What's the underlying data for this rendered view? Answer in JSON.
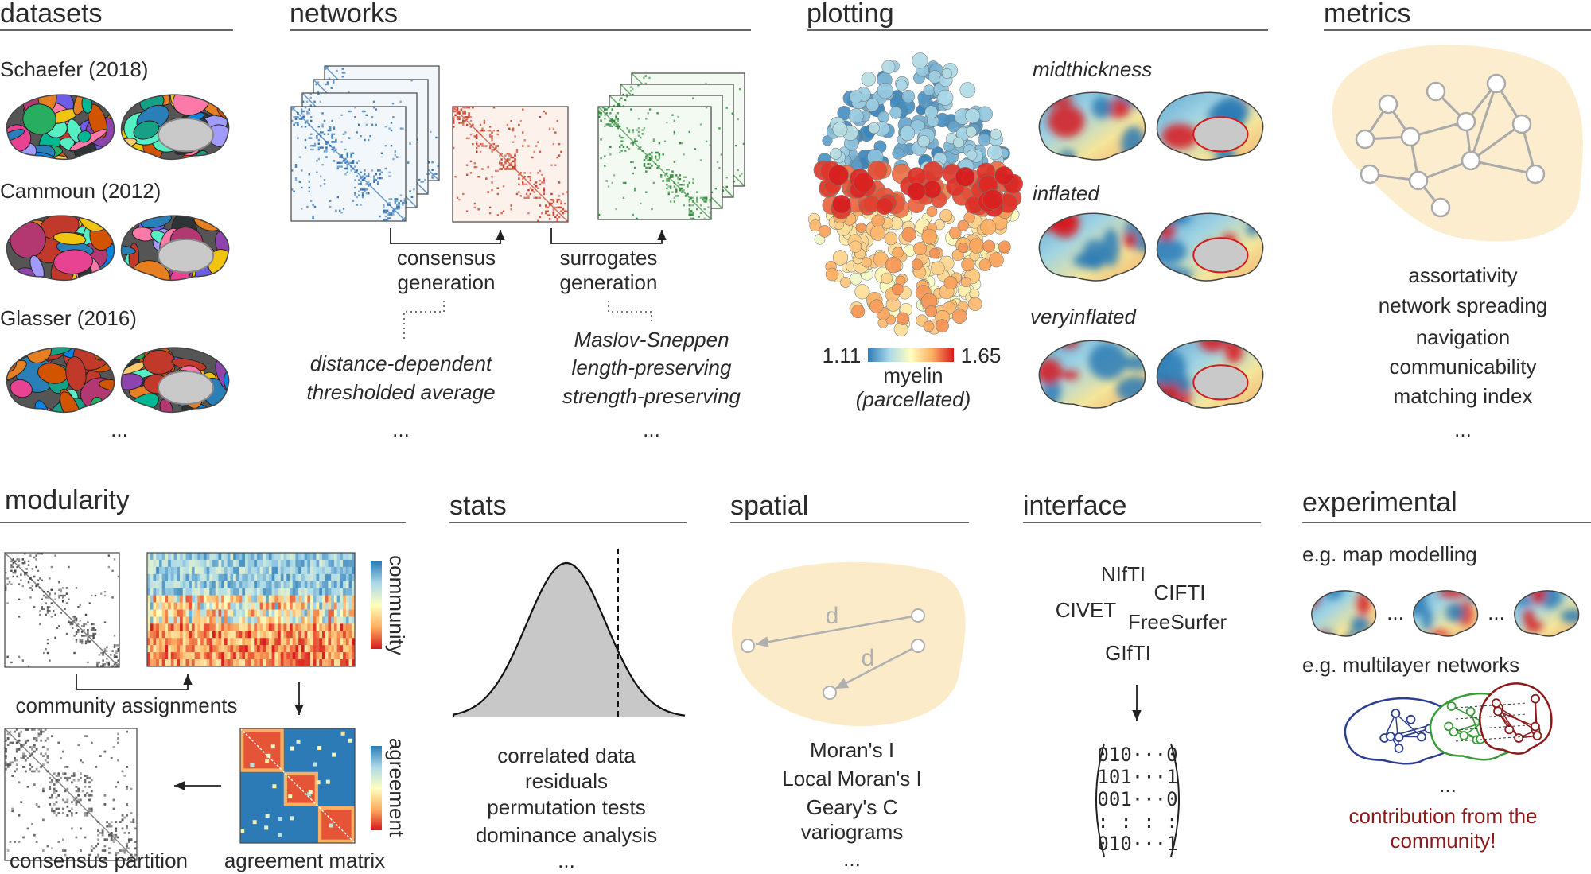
{
  "datasets": {
    "title": "datasets",
    "atlases": [
      "Schaefer (2018)",
      "Cammoun (2012)",
      "Glasser (2016)"
    ],
    "more": "..."
  },
  "networks": {
    "title": "networks",
    "consensus": [
      "consensus",
      "generation"
    ],
    "consensus_methods": [
      "distance-dependent",
      "thresholded average"
    ],
    "consensus_more": "...",
    "surrogates": [
      "surrogates",
      "generation"
    ],
    "surrogate_methods": [
      "Maslov-Sneppen",
      "length-preserving",
      "strength-preserving"
    ],
    "surrogate_more": "..."
  },
  "plotting": {
    "title": "plotting",
    "colorbar_min": "1.11",
    "colorbar_max": "1.65",
    "map_name": "myelin",
    "map_note": "(parcellated)",
    "surfaces": [
      "midthickness",
      "inflated",
      "veryinflated"
    ]
  },
  "metrics": {
    "title": "metrics",
    "items": [
      "assortativity",
      "network spreading",
      "navigation",
      "communicability",
      "matching index"
    ],
    "more": "..."
  },
  "modularity": {
    "title": "modularity",
    "community_label": "community",
    "agreement_label": "agreement",
    "community_assignments": "community assignments",
    "consensus_partition": "consensus partition",
    "agreement_matrix": "agreement matrix"
  },
  "stats": {
    "title": "stats",
    "items": [
      "correlated data",
      "residuals",
      "permutation tests",
      "dominance analysis"
    ],
    "more": "..."
  },
  "spatial": {
    "title": "spatial",
    "distance_labels": [
      "d",
      "d"
    ],
    "items": [
      "Moran's I",
      "Local Moran's I",
      "Geary's C",
      "variograms"
    ],
    "more": "..."
  },
  "interface": {
    "title": "interface",
    "formats": [
      "NIfTI",
      "CIFTI",
      "CIVET",
      "FreeSurfer",
      "GIfTI"
    ],
    "matrix_rows": [
      "010···0",
      "101···1",
      "001···0",
      ":  :  :      :",
      "010···1"
    ]
  },
  "experimental": {
    "title": "experimental",
    "examples": [
      "e.g. map modelling",
      "e.g. multilayer networks"
    ],
    "map_gaps": [
      "...",
      "..."
    ],
    "more": "...",
    "call": [
      "contribution from the",
      "community!"
    ]
  }
}
